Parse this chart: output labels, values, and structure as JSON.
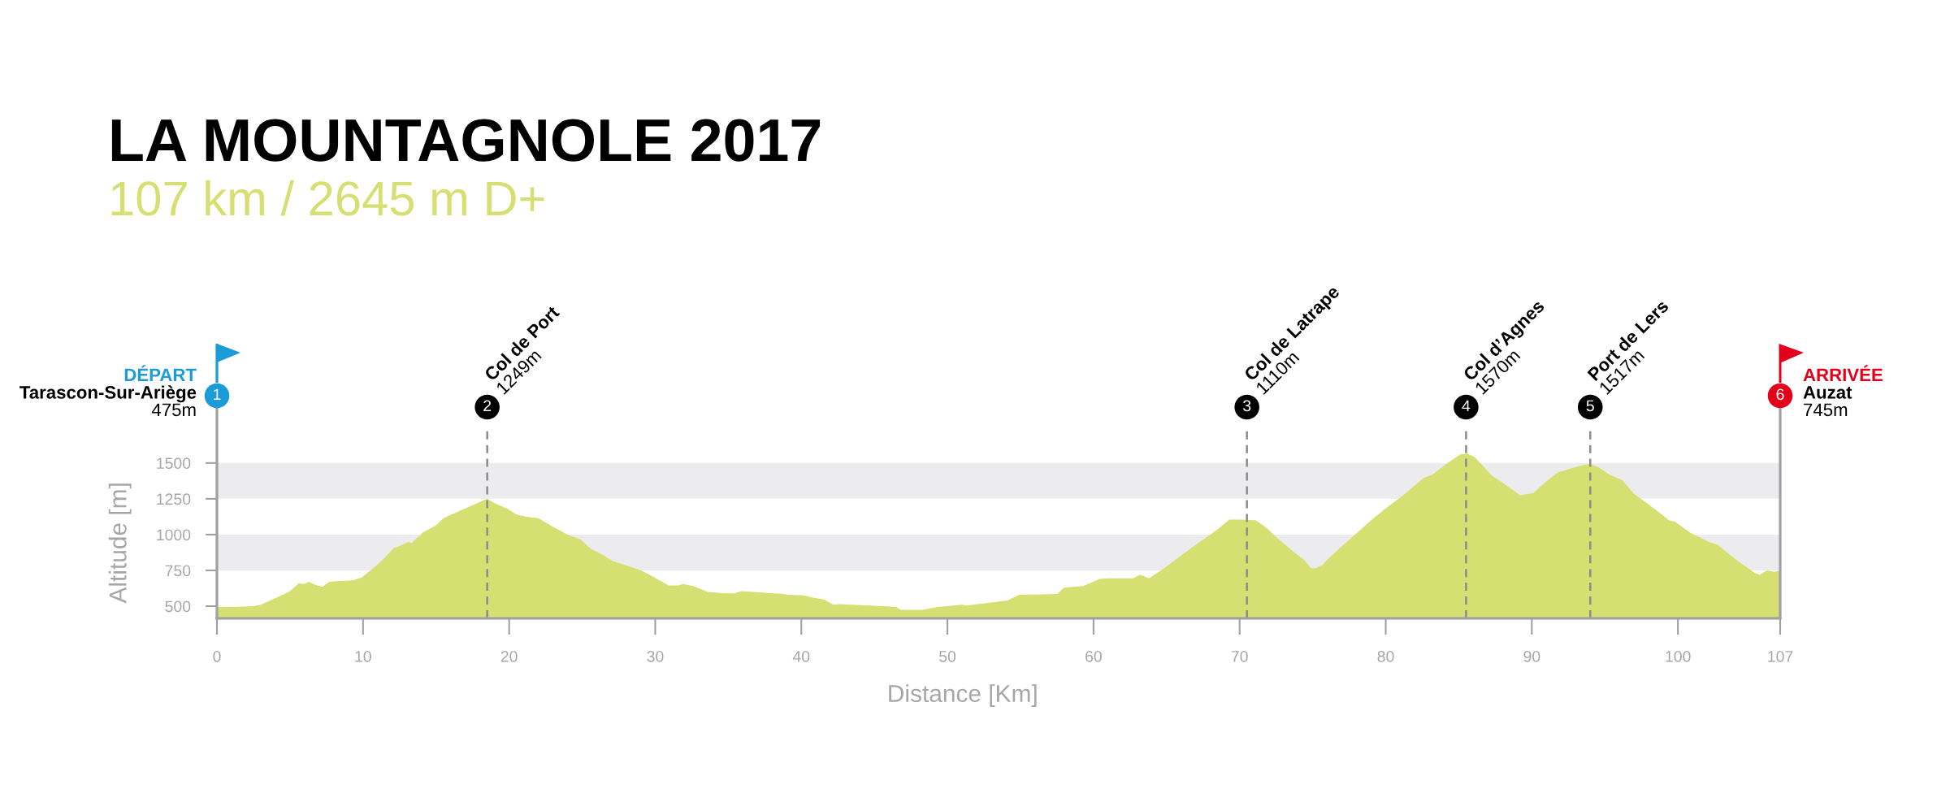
{
  "chart_data": {
    "type": "area",
    "title": "LA MOUNTAGNOLE 2017",
    "subtitle": "107 km / 2645 m D+",
    "xlabel": "Distance [Km]",
    "ylabel": "Altitude [m]",
    "series": [
      {
        "color": "#d6df72",
        "x": [
          0,
          1.0,
          2.5,
          3.0,
          4.5,
          5.0,
          5.6,
          6.0,
          6.3,
          6.7,
          7.2,
          7.7,
          8.2,
          9.3,
          9.9,
          10.7,
          11.3,
          12.1,
          12.5,
          13.1,
          13.3,
          14.1,
          15.0,
          15.5,
          16.4,
          17.5,
          18.5,
          19.1,
          19.9,
          20.5,
          21.2,
          22.0,
          22.9,
          24.0,
          24.9,
          25.6,
          26.3,
          27.1,
          28.0,
          28.9,
          29.6,
          30.3,
          30.9,
          31.6,
          31.9,
          32.6,
          33.6,
          34.8,
          35.4,
          35.9,
          38.8,
          39.1,
          40.2,
          40.8,
          41.6,
          42.2,
          42.6,
          45.6,
          46.5,
          46.8,
          48.3,
          49.3,
          51.0,
          51.3,
          54.1,
          54.9,
          57.5,
          58.0,
          59.3,
          60.4,
          61.0,
          62.7,
          63.2,
          63.8,
          64.9,
          66.6,
          68.4,
          69.3,
          70.0,
          71.1,
          71.8,
          72.7,
          73.8,
          74.4,
          74.9,
          75.2,
          75.7,
          76.0,
          76.8,
          78.0,
          79.0,
          79.9,
          81.2,
          82.6,
          83.2,
          84.3,
          85.1,
          85.6,
          86.1,
          87.3,
          87.9,
          89.2,
          90.1,
          91.2,
          91.8,
          93.1,
          93.9,
          94.5,
          95.3,
          96.2,
          97.0,
          98.4,
          99.4,
          99.8,
          100.9,
          102.2,
          102.7,
          104.1,
          105.3,
          105.6,
          106.1,
          106.6,
          107.0
        ],
        "values": [
          495,
          495,
          500,
          510,
          580,
          605,
          660,
          655,
          670,
          650,
          635,
          670,
          675,
          680,
          700,
          765,
          820,
          905,
          920,
          950,
          940,
          1015,
          1065,
          1115,
          1155,
          1205,
          1250,
          1215,
          1180,
          1140,
          1125,
          1115,
          1060,
          1000,
          965,
          900,
          865,
          815,
          785,
          755,
          720,
          680,
          645,
          645,
          655,
          640,
          600,
          590,
          590,
          605,
          585,
          580,
          575,
          560,
          545,
          510,
          515,
          500,
          495,
          475,
          475,
          495,
          510,
          505,
          540,
          580,
          585,
          630,
          640,
          690,
          695,
          695,
          720,
          695,
          770,
          900,
          1030,
          1105,
          1105,
          1100,
          1050,
          965,
          870,
          825,
          765,
          765,
          790,
          825,
          900,
          1010,
          1100,
          1175,
          1275,
          1395,
          1420,
          1505,
          1560,
          1565,
          1540,
          1410,
          1370,
          1275,
          1290,
          1390,
          1435,
          1475,
          1495,
          1475,
          1420,
          1380,
          1285,
          1180,
          1100,
          1090,
          1010,
          945,
          930,
          815,
          730,
          720,
          750,
          740,
          750
        ]
      }
    ],
    "xlim": [
      0,
      107
    ],
    "xticks": [
      0,
      10,
      20,
      30,
      40,
      50,
      60,
      70,
      80,
      90,
      100,
      107
    ],
    "ylim": [
      415,
      1970
    ],
    "yticks": [
      500,
      750,
      1000,
      1250,
      1500
    ],
    "bands": [
      {
        "axis": "y",
        "from": 750,
        "to": 1000,
        "color": "#ececee"
      },
      {
        "axis": "y",
        "from": 1250,
        "to": 1500,
        "color": "#ececee"
      }
    ],
    "ref_lines": [
      {
        "axis": "x",
        "value": 0,
        "label": "Tarascon-Sur-Ariège",
        "color": "#1b9bd7",
        "line_style": "solid"
      },
      {
        "axis": "x",
        "value": 18.5,
        "label": "Col de Port",
        "color": "#8c8c8c",
        "line_style": "dashed"
      },
      {
        "axis": "x",
        "value": 70.5,
        "label": "Col de Latrape",
        "color": "#8c8c8c",
        "line_style": "dashed"
      },
      {
        "axis": "x",
        "value": 85.5,
        "label": "Col d’Agnes",
        "color": "#8c8c8c",
        "line_style": "dashed"
      },
      {
        "axis": "x",
        "value": 94,
        "label": "Port de Lers",
        "color": "#8c8c8c",
        "line_style": "dashed"
      },
      {
        "axis": "x",
        "value": 107,
        "label": "Auzat",
        "color": "#a0a0a0",
        "line_style": "solid"
      }
    ],
    "annotations": [
      "1",
      "475m",
      "2",
      "1249m",
      "3",
      "1110m",
      "4",
      "1570m",
      "5",
      "1517m",
      "6",
      "745m",
      "DÉPART",
      "ARRIVÉE"
    ]
  }
}
